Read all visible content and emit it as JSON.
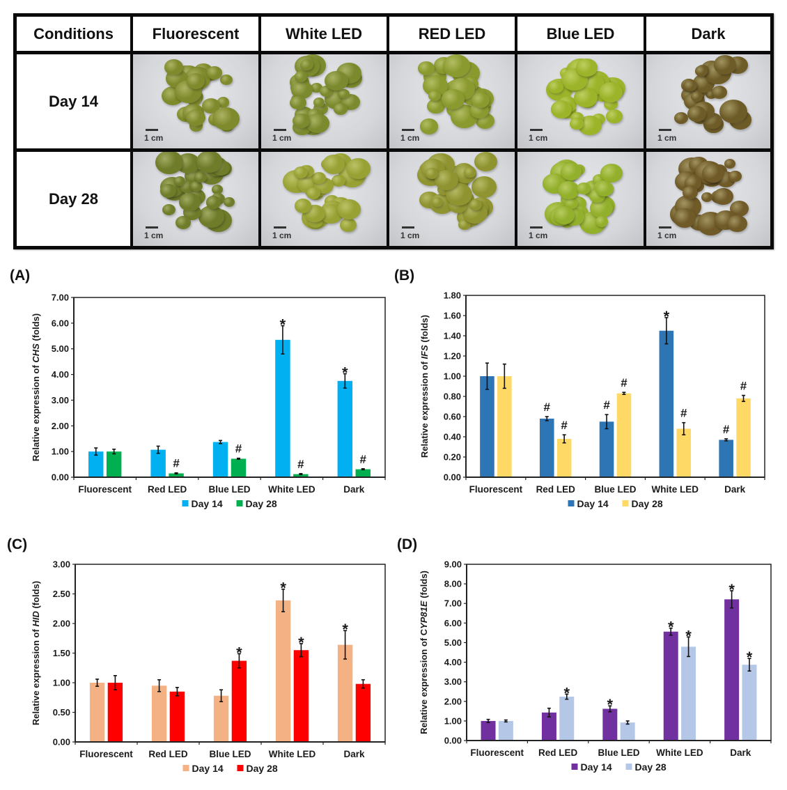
{
  "photo_grid": {
    "corner_label": "Conditions",
    "columns": [
      "Fluorescent",
      "White LED",
      "RED LED",
      "Blue LED",
      "Dark"
    ],
    "rows": [
      {
        "label": "Day 14",
        "scale_labels": [
          "1 cm",
          "1 cm",
          "1 cm",
          "1 cm",
          "1 cm"
        ],
        "callus_tints": [
          "#7f8a2c",
          "#7c8a2e",
          "#8a9a2e",
          "#9cb42a",
          "#6e5c28"
        ]
      },
      {
        "label": "Day 28",
        "scale_labels": [
          "1 cm",
          "1 cm",
          "1 cm",
          "1 cm",
          "1 cm"
        ],
        "callus_tints": [
          "#6f7c2a",
          "#98a234",
          "#8f9430",
          "#93b02c",
          "#6f5a28"
        ]
      }
    ]
  },
  "chart_data": [
    {
      "panel": "(A)",
      "type": "bar",
      "title": "",
      "xlabel": "",
      "ylabel_prefix": "Relative expression of ",
      "ylabel_gene": "CHS",
      "ylabel_suffix": " (folds)",
      "categories": [
        "Fluorescent",
        "Red LED",
        "Blue LED",
        "White LED",
        "Dark"
      ],
      "ylim": [
        0,
        7
      ],
      "yticks": [
        "0.00",
        "1.00",
        "2.00",
        "3.00",
        "4.00",
        "5.00",
        "6.00",
        "7.00"
      ],
      "ytick_values": [
        0,
        1,
        2,
        3,
        4,
        5,
        6,
        7
      ],
      "grid": false,
      "legend_position": "bottom",
      "series": [
        {
          "name": "Day 14",
          "color": "#00b0f0",
          "values": [
            1.0,
            1.07,
            1.37,
            5.35,
            3.75
          ],
          "errors": [
            0.14,
            0.14,
            0.06,
            0.55,
            0.28
          ],
          "markers": [
            "",
            "",
            "",
            "*",
            "*"
          ]
        },
        {
          "name": "Day 28",
          "color": "#00b050",
          "values": [
            1.0,
            0.15,
            0.72,
            0.12,
            0.31
          ],
          "errors": [
            0.09,
            0.02,
            0.02,
            0.02,
            0.02
          ],
          "markers": [
            "",
            "#",
            "#",
            "#",
            "#"
          ]
        }
      ]
    },
    {
      "panel": "(B)",
      "type": "bar",
      "title": "",
      "xlabel": "",
      "ylabel_prefix": "Relative expression of ",
      "ylabel_gene": "IFS",
      "ylabel_suffix": " (folds)",
      "categories": [
        "Fluorescent",
        "Red LED",
        "Blue LED",
        "White LED",
        "Dark"
      ],
      "ylim": [
        0,
        1.8
      ],
      "yticks": [
        "0.00",
        "0.20",
        "0.40",
        "0.60",
        "0.80",
        "1.00",
        "1.20",
        "1.40",
        "1.60",
        "1.80"
      ],
      "ytick_values": [
        0,
        0.2,
        0.4,
        0.6,
        0.8,
        1.0,
        1.2,
        1.4,
        1.6,
        1.8
      ],
      "grid": false,
      "legend_position": "bottom",
      "series": [
        {
          "name": "Day 14",
          "color": "#2e75b6",
          "values": [
            1.0,
            0.58,
            0.55,
            1.45,
            0.37
          ],
          "errors": [
            0.13,
            0.02,
            0.07,
            0.13,
            0.01
          ],
          "markers": [
            "",
            "#",
            "#",
            "*",
            "#"
          ]
        },
        {
          "name": "Day 28",
          "color": "#ffd966",
          "values": [
            1.0,
            0.38,
            0.83,
            0.48,
            0.78
          ],
          "errors": [
            0.12,
            0.04,
            0.01,
            0.06,
            0.03
          ],
          "markers": [
            "",
            "#",
            "#",
            "#",
            "#"
          ]
        }
      ]
    },
    {
      "panel": "(C)",
      "type": "bar",
      "title": "",
      "xlabel": "",
      "ylabel_prefix": "Relative expression of ",
      "ylabel_gene": "HID",
      "ylabel_suffix": " (folds)",
      "categories": [
        "Fluorescent",
        "Red LED",
        "Blue LED",
        "White LED",
        "Dark"
      ],
      "ylim": [
        0,
        3
      ],
      "yticks": [
        "0.00",
        "0.50",
        "1.00",
        "1.50",
        "2.00",
        "2.50",
        "3.00"
      ],
      "ytick_values": [
        0,
        0.5,
        1.0,
        1.5,
        2.0,
        2.5,
        3.0
      ],
      "grid": false,
      "legend_position": "bottom",
      "series": [
        {
          "name": "Day 14",
          "color": "#f4b183",
          "values": [
            1.0,
            0.95,
            0.78,
            2.39,
            1.64
          ],
          "errors": [
            0.06,
            0.1,
            0.1,
            0.19,
            0.24
          ],
          "markers": [
            "",
            "",
            "",
            "*",
            "*"
          ]
        },
        {
          "name": "Day 28",
          "color": "#ff0000",
          "values": [
            1.0,
            0.85,
            1.37,
            1.55,
            0.98
          ],
          "errors": [
            0.12,
            0.07,
            0.12,
            0.11,
            0.07
          ],
          "markers": [
            "",
            "",
            "*",
            "*",
            ""
          ]
        }
      ]
    },
    {
      "panel": "(D)",
      "type": "bar",
      "title": "",
      "xlabel": "",
      "ylabel_prefix": "Relative expression of C",
      "ylabel_gene": "YP81E",
      "ylabel_suffix": " (folds)",
      "categories": [
        "Fluorescent",
        "Red LED",
        "Blue LED",
        "White LED",
        "Dark"
      ],
      "ylim": [
        0,
        9
      ],
      "yticks": [
        "0.00",
        "1.00",
        "2.00",
        "3.00",
        "4.00",
        "5.00",
        "6.00",
        "7.00",
        "8.00",
        "9.00"
      ],
      "ytick_values": [
        0,
        1,
        2,
        3,
        4,
        5,
        6,
        7,
        8,
        9
      ],
      "grid": false,
      "legend_position": "bottom",
      "series": [
        {
          "name": "Day 14",
          "color": "#7030a0",
          "values": [
            1.0,
            1.43,
            1.62,
            5.56,
            7.21
          ],
          "errors": [
            0.08,
            0.22,
            0.15,
            0.18,
            0.44
          ],
          "markers": [
            "",
            "",
            "*",
            "*",
            "*"
          ]
        },
        {
          "name": "Day 28",
          "color": "#b4c7e7",
          "values": [
            1.0,
            2.24,
            0.92,
            4.79,
            3.87
          ],
          "errors": [
            0.05,
            0.13,
            0.08,
            0.5,
            0.32
          ],
          "markers": [
            "",
            "*",
            "",
            "*",
            "*"
          ]
        }
      ]
    }
  ]
}
